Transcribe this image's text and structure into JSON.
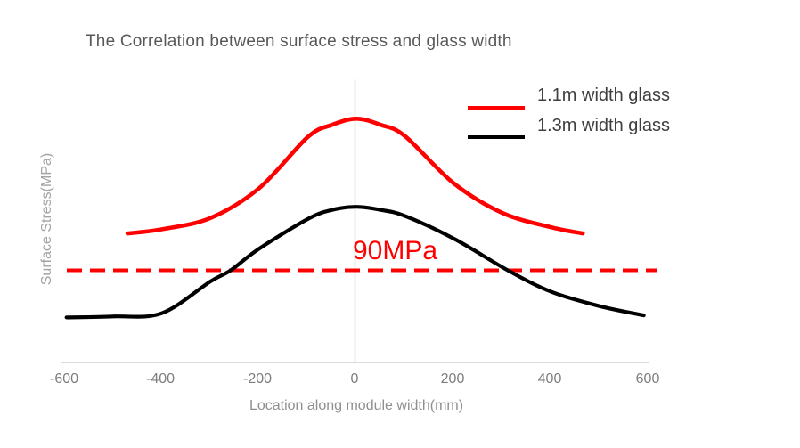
{
  "chart_data": {
    "type": "line",
    "title": "The Correlation between surface stress and glass width",
    "xlabel": "Location along module width(mm)",
    "ylabel": "Surface Stress(MPa)",
    "x_ticks": [
      "-600",
      "-400",
      "-200",
      "0",
      "200",
      "400",
      "600"
    ],
    "xlim": [
      -600,
      600
    ],
    "y_unit": "MPa",
    "grid": "single light vertical gridline at x=0; light horizontal baseline axis; no y ticks",
    "legend_position": "top-right",
    "threshold": {
      "label": "90MPa",
      "value": 90,
      "color": "#ff0000",
      "style": "dashed"
    },
    "series": [
      {
        "name": "1.1m width glass",
        "color": "#ff0000",
        "points": [
          [
            -470,
            126
          ],
          [
            -400,
            130
          ],
          [
            -300,
            141
          ],
          [
            -200,
            170
          ],
          [
            -100,
            220
          ],
          [
            -50,
            232
          ],
          [
            0,
            238
          ],
          [
            50,
            232
          ],
          [
            100,
            221
          ],
          [
            200,
            175
          ],
          [
            300,
            146
          ],
          [
            400,
            132
          ],
          [
            465,
            126
          ]
        ]
      },
      {
        "name": "1.3m width glass",
        "color": "#000000",
        "points": [
          [
            -595,
            44
          ],
          [
            -500,
            45
          ],
          [
            -400,
            48
          ],
          [
            -300,
            79
          ],
          [
            -258,
            90
          ],
          [
            -200,
            111
          ],
          [
            -100,
            140
          ],
          [
            -50,
            149
          ],
          [
            0,
            152
          ],
          [
            50,
            149
          ],
          [
            100,
            143
          ],
          [
            200,
            121
          ],
          [
            311,
            90
          ],
          [
            400,
            69
          ],
          [
            500,
            55
          ],
          [
            590,
            46
          ]
        ]
      }
    ],
    "axis_colors": {
      "baseline": "#dcdcdc",
      "zero_gridline": "#cccccc",
      "title_text": "#595959",
      "tick_text": "#7d7d7d"
    }
  }
}
